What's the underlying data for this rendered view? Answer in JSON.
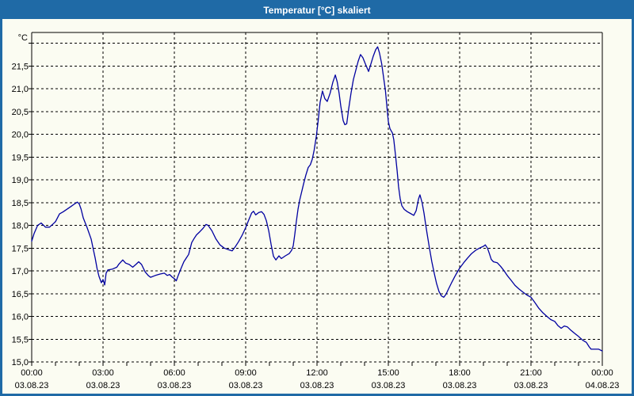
{
  "window": {
    "title": "Temperatur [°C] skaliert"
  },
  "chart_data": {
    "type": "line",
    "title": "Temperatur [°C] skaliert",
    "ylabel": "°C",
    "xlabel": "",
    "ylim": [
      15.0,
      22.25
    ],
    "xlim_hours": [
      0,
      24
    ],
    "grid": "dashed",
    "legend": "none",
    "y_ticks": [
      {
        "value": 22.0,
        "label": ""
      },
      {
        "value": 21.5,
        "label": "21,5"
      },
      {
        "value": 21.0,
        "label": "21,0"
      },
      {
        "value": 20.5,
        "label": "20,5"
      },
      {
        "value": 20.0,
        "label": "20,0"
      },
      {
        "value": 19.5,
        "label": "19,5"
      },
      {
        "value": 19.0,
        "label": "19,0"
      },
      {
        "value": 18.5,
        "label": "18,5"
      },
      {
        "value": 18.0,
        "label": "18,0"
      },
      {
        "value": 17.5,
        "label": "17,5"
      },
      {
        "value": 17.0,
        "label": "17,0"
      },
      {
        "value": 16.5,
        "label": "16,5"
      },
      {
        "value": 16.0,
        "label": "16,0"
      },
      {
        "value": 15.5,
        "label": "15,5"
      },
      {
        "value": 15.0,
        "label": "15,0"
      }
    ],
    "x_ticks": [
      {
        "hour": 0,
        "time": "00:00",
        "date": "03.08.23"
      },
      {
        "hour": 3,
        "time": "03:00",
        "date": "03.08.23"
      },
      {
        "hour": 6,
        "time": "06:00",
        "date": "03.08.23"
      },
      {
        "hour": 9,
        "time": "09:00",
        "date": "03.08.23"
      },
      {
        "hour": 12,
        "time": "12:00",
        "date": "03.08.23"
      },
      {
        "hour": 15,
        "time": "15:00",
        "date": "03.08.23"
      },
      {
        "hour": 18,
        "time": "18:00",
        "date": "03.08.23"
      },
      {
        "hour": 21,
        "time": "21:00",
        "date": "03.08.23"
      },
      {
        "hour": 24,
        "time": "00:00",
        "date": "04.08.23"
      }
    ],
    "minor_tick_every_hours": 1,
    "line_color": "#0000a0",
    "series": [
      {
        "name": "Temperatur [°C]",
        "points": [
          [
            0.0,
            17.65
          ],
          [
            0.1,
            17.82
          ],
          [
            0.25,
            18.0
          ],
          [
            0.4,
            18.05
          ],
          [
            0.58,
            17.96
          ],
          [
            0.75,
            17.96
          ],
          [
            0.92,
            18.04
          ],
          [
            1.0,
            18.08
          ],
          [
            1.17,
            18.25
          ],
          [
            1.33,
            18.3
          ],
          [
            1.5,
            18.36
          ],
          [
            1.67,
            18.42
          ],
          [
            1.83,
            18.48
          ],
          [
            1.92,
            18.51
          ],
          [
            2.0,
            18.47
          ],
          [
            2.08,
            18.35
          ],
          [
            2.17,
            18.16
          ],
          [
            2.33,
            17.95
          ],
          [
            2.5,
            17.7
          ],
          [
            2.58,
            17.5
          ],
          [
            2.67,
            17.28
          ],
          [
            2.75,
            17.05
          ],
          [
            2.83,
            16.88
          ],
          [
            2.93,
            16.74
          ],
          [
            3.0,
            16.81
          ],
          [
            3.07,
            16.69
          ],
          [
            3.13,
            16.95
          ],
          [
            3.2,
            17.02
          ],
          [
            3.4,
            17.04
          ],
          [
            3.58,
            17.08
          ],
          [
            3.67,
            17.15
          ],
          [
            3.83,
            17.24
          ],
          [
            3.95,
            17.17
          ],
          [
            4.1,
            17.14
          ],
          [
            4.25,
            17.08
          ],
          [
            4.4,
            17.15
          ],
          [
            4.5,
            17.2
          ],
          [
            4.62,
            17.14
          ],
          [
            4.77,
            16.98
          ],
          [
            4.9,
            16.9
          ],
          [
            5.0,
            16.86
          ],
          [
            5.2,
            16.9
          ],
          [
            5.4,
            16.93
          ],
          [
            5.58,
            16.95
          ],
          [
            5.7,
            16.9
          ],
          [
            5.8,
            16.92
          ],
          [
            5.92,
            16.86
          ],
          [
            6.0,
            16.83
          ],
          [
            6.08,
            16.78
          ],
          [
            6.17,
            16.91
          ],
          [
            6.27,
            17.04
          ],
          [
            6.4,
            17.2
          ],
          [
            6.5,
            17.28
          ],
          [
            6.6,
            17.36
          ],
          [
            6.67,
            17.5
          ],
          [
            6.73,
            17.62
          ],
          [
            6.83,
            17.71
          ],
          [
            6.93,
            17.79
          ],
          [
            7.07,
            17.86
          ],
          [
            7.2,
            17.93
          ],
          [
            7.33,
            18.02
          ],
          [
            7.42,
            18.0
          ],
          [
            7.58,
            17.88
          ],
          [
            7.75,
            17.7
          ],
          [
            7.92,
            17.57
          ],
          [
            8.1,
            17.5
          ],
          [
            8.3,
            17.46
          ],
          [
            8.43,
            17.44
          ],
          [
            8.55,
            17.52
          ],
          [
            8.7,
            17.64
          ],
          [
            8.85,
            17.78
          ],
          [
            9.0,
            17.95
          ],
          [
            9.13,
            18.12
          ],
          [
            9.25,
            18.27
          ],
          [
            9.33,
            18.31
          ],
          [
            9.42,
            18.23
          ],
          [
            9.55,
            18.28
          ],
          [
            9.67,
            18.3
          ],
          [
            9.77,
            18.24
          ],
          [
            9.87,
            18.1
          ],
          [
            9.97,
            17.88
          ],
          [
            10.07,
            17.58
          ],
          [
            10.17,
            17.32
          ],
          [
            10.27,
            17.24
          ],
          [
            10.4,
            17.33
          ],
          [
            10.5,
            17.27
          ],
          [
            10.67,
            17.33
          ],
          [
            10.83,
            17.38
          ],
          [
            10.93,
            17.45
          ],
          [
            11.0,
            17.55
          ],
          [
            11.07,
            17.82
          ],
          [
            11.13,
            18.08
          ],
          [
            11.2,
            18.35
          ],
          [
            11.27,
            18.55
          ],
          [
            11.33,
            18.68
          ],
          [
            11.43,
            18.9
          ],
          [
            11.53,
            19.1
          ],
          [
            11.63,
            19.27
          ],
          [
            11.72,
            19.33
          ],
          [
            11.8,
            19.45
          ],
          [
            11.88,
            19.65
          ],
          [
            11.97,
            19.95
          ],
          [
            12.05,
            20.3
          ],
          [
            12.13,
            20.7
          ],
          [
            12.23,
            20.95
          ],
          [
            12.33,
            20.78
          ],
          [
            12.43,
            20.72
          ],
          [
            12.55,
            20.9
          ],
          [
            12.67,
            21.15
          ],
          [
            12.77,
            21.3
          ],
          [
            12.85,
            21.15
          ],
          [
            12.93,
            20.9
          ],
          [
            13.0,
            20.62
          ],
          [
            13.1,
            20.3
          ],
          [
            13.17,
            20.21
          ],
          [
            13.25,
            20.23
          ],
          [
            13.33,
            20.55
          ],
          [
            13.43,
            20.9
          ],
          [
            13.53,
            21.2
          ],
          [
            13.63,
            21.4
          ],
          [
            13.73,
            21.6
          ],
          [
            13.83,
            21.75
          ],
          [
            13.93,
            21.68
          ],
          [
            14.03,
            21.55
          ],
          [
            14.17,
            21.38
          ],
          [
            14.27,
            21.55
          ],
          [
            14.37,
            21.72
          ],
          [
            14.47,
            21.86
          ],
          [
            14.55,
            21.92
          ],
          [
            14.63,
            21.78
          ],
          [
            14.72,
            21.55
          ],
          [
            14.8,
            21.25
          ],
          [
            14.88,
            20.95
          ],
          [
            14.95,
            20.55
          ],
          [
            15.0,
            20.28
          ],
          [
            15.07,
            20.12
          ],
          [
            15.17,
            20.03
          ],
          [
            15.23,
            19.88
          ],
          [
            15.3,
            19.55
          ],
          [
            15.37,
            19.2
          ],
          [
            15.43,
            18.85
          ],
          [
            15.5,
            18.58
          ],
          [
            15.57,
            18.43
          ],
          [
            15.67,
            18.35
          ],
          [
            15.8,
            18.3
          ],
          [
            15.93,
            18.26
          ],
          [
            16.07,
            18.22
          ],
          [
            16.17,
            18.32
          ],
          [
            16.27,
            18.58
          ],
          [
            16.33,
            18.67
          ],
          [
            16.42,
            18.5
          ],
          [
            16.5,
            18.27
          ],
          [
            16.57,
            18.02
          ],
          [
            16.63,
            17.82
          ],
          [
            16.73,
            17.5
          ],
          [
            16.83,
            17.2
          ],
          [
            16.93,
            16.95
          ],
          [
            17.03,
            16.72
          ],
          [
            17.13,
            16.55
          ],
          [
            17.23,
            16.45
          ],
          [
            17.33,
            16.42
          ],
          [
            17.42,
            16.48
          ],
          [
            17.53,
            16.6
          ],
          [
            17.67,
            16.75
          ],
          [
            17.8,
            16.88
          ],
          [
            17.93,
            17.0
          ],
          [
            18.0,
            17.06
          ],
          [
            18.17,
            17.18
          ],
          [
            18.33,
            17.28
          ],
          [
            18.5,
            17.38
          ],
          [
            18.67,
            17.45
          ],
          [
            18.83,
            17.5
          ],
          [
            19.0,
            17.54
          ],
          [
            19.08,
            17.57
          ],
          [
            19.17,
            17.5
          ],
          [
            19.25,
            17.38
          ],
          [
            19.33,
            17.25
          ],
          [
            19.42,
            17.2
          ],
          [
            19.58,
            17.18
          ],
          [
            19.72,
            17.1
          ],
          [
            19.87,
            17.0
          ],
          [
            20.0,
            16.9
          ],
          [
            20.17,
            16.79
          ],
          [
            20.33,
            16.68
          ],
          [
            20.5,
            16.6
          ],
          [
            20.67,
            16.53
          ],
          [
            20.83,
            16.47
          ],
          [
            21.0,
            16.42
          ],
          [
            21.17,
            16.3
          ],
          [
            21.33,
            16.18
          ],
          [
            21.5,
            16.08
          ],
          [
            21.67,
            16.0
          ],
          [
            21.83,
            15.93
          ],
          [
            22.0,
            15.89
          ],
          [
            22.13,
            15.8
          ],
          [
            22.27,
            15.74
          ],
          [
            22.4,
            15.79
          ],
          [
            22.53,
            15.77
          ],
          [
            22.67,
            15.7
          ],
          [
            22.83,
            15.63
          ],
          [
            23.0,
            15.56
          ],
          [
            23.17,
            15.48
          ],
          [
            23.33,
            15.43
          ],
          [
            23.45,
            15.33
          ],
          [
            23.53,
            15.28
          ],
          [
            23.7,
            15.28
          ],
          [
            23.85,
            15.28
          ],
          [
            24.0,
            15.24
          ]
        ]
      }
    ]
  },
  "colors": {
    "titlebar": "#1f6aa6",
    "title_text": "#ffffff",
    "background": "#fbfcf2",
    "line": "#0000a0",
    "grid": "#000000",
    "frame": "#1f6aa6"
  }
}
